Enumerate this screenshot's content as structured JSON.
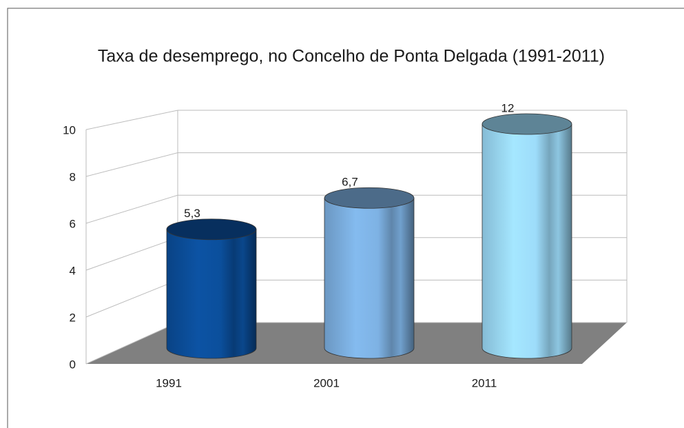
{
  "chart_data": {
    "type": "bar3d",
    "title": "Taxa de desemprego, no Concelho de Ponta Delgada (1991-2011)",
    "categories": [
      "1991",
      "2001",
      "2011"
    ],
    "values": [
      5.3,
      6.7,
      12
    ],
    "value_labels": [
      "5,3",
      "6,7",
      "12"
    ],
    "colors": [
      "#0b4f9c",
      "#7eb2e4",
      "#9ddcfa"
    ],
    "ylim": [
      0,
      10
    ],
    "yticks": [
      0,
      2,
      4,
      6,
      8,
      10
    ],
    "grid": true
  }
}
